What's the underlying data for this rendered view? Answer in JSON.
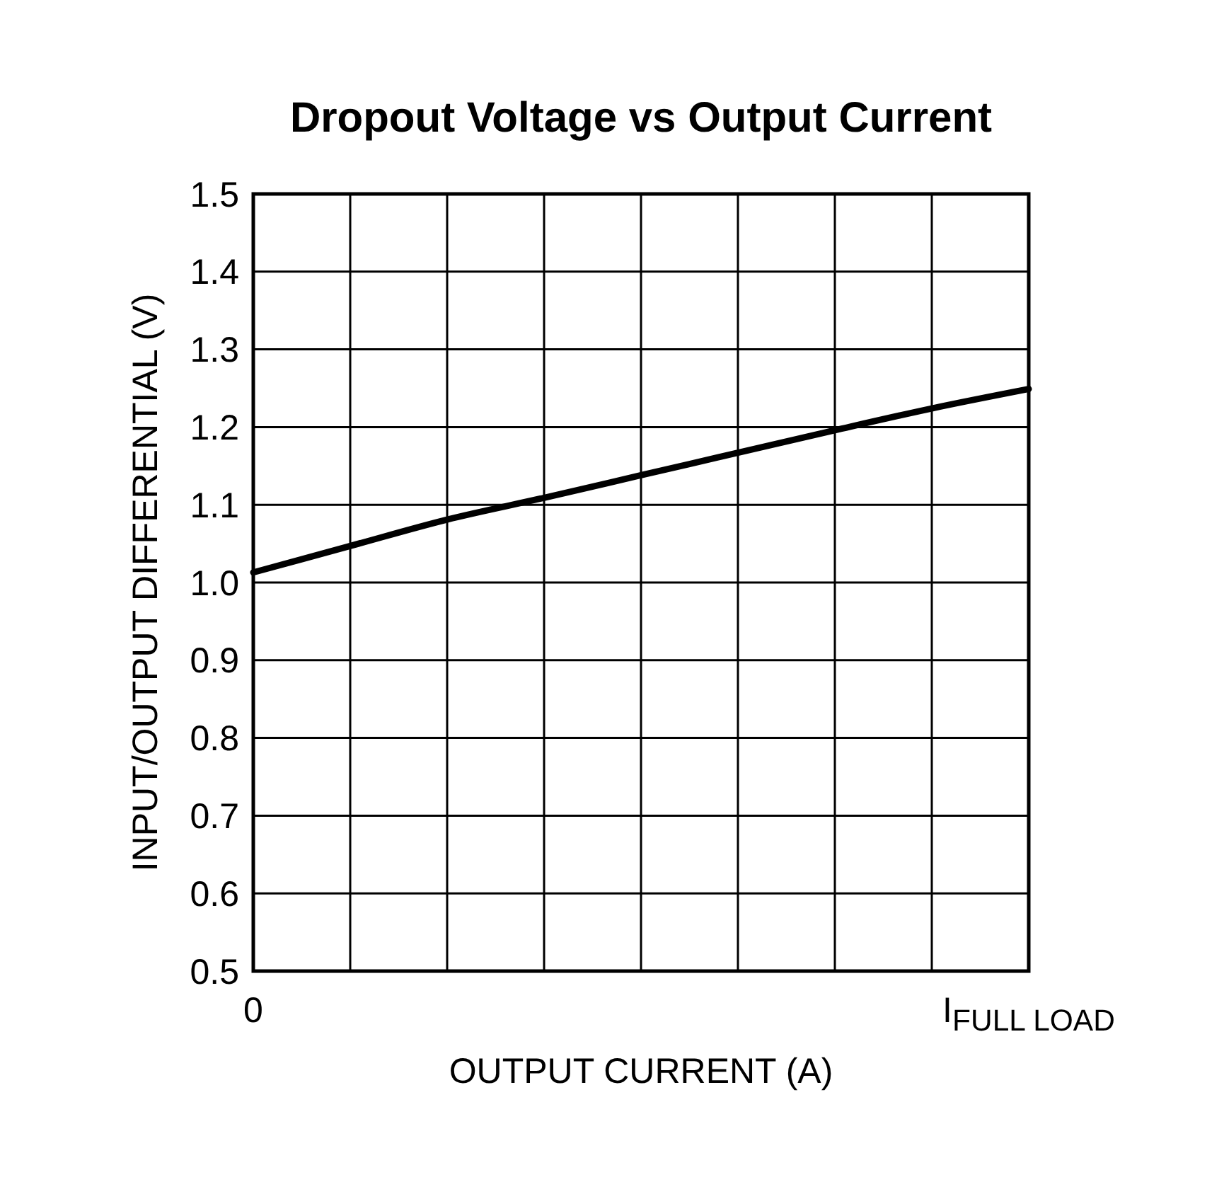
{
  "chart_data": {
    "type": "line",
    "title": "Dropout Voltage vs Output Current",
    "xlabel": "OUTPUT CURRENT (A)",
    "ylabel": "INPUT/OUTPUT DIFFERENTIAL (V)",
    "categories": [
      "0",
      null,
      null,
      null,
      null,
      null,
      null,
      null,
      "I$_{FULL LOAD}$"
    ],
    "series": [
      {
        "color": "#000000",
        "values": [
          1.013,
          1.047,
          1.081,
          1.109,
          1.138,
          1.167,
          1.196,
          1.224,
          1.249
        ]
      }
    ],
    "ylim": [
      0.5,
      1.5
    ],
    "yticks": [
      {
        "value": 0.5,
        "label": "0.5"
      },
      {
        "value": 0.6,
        "label": "0.6"
      },
      {
        "value": 0.7,
        "label": "0.7"
      },
      {
        "value": 0.8,
        "label": "0.8"
      },
      {
        "value": 0.9,
        "label": "0.9"
      },
      {
        "value": 1.0,
        "label": "1.0"
      },
      {
        "value": 1.1,
        "label": "1.1"
      },
      {
        "value": 1.2,
        "label": "1.2"
      },
      {
        "value": 1.3,
        "label": "1.3"
      },
      {
        "value": 1.4,
        "label": "1.4"
      },
      {
        "value": 1.5,
        "label": "1.5"
      }
    ],
    "grid": true,
    "line_style": "solid",
    "marker": "none"
  }
}
